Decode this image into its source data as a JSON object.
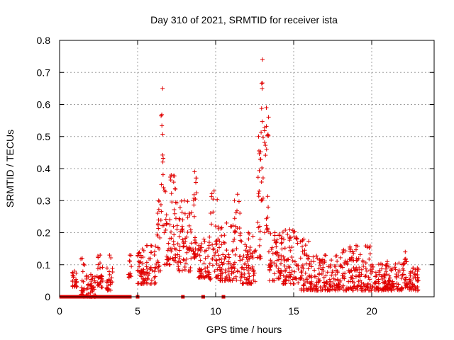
{
  "chart_data": {
    "type": "scatter",
    "title": "Day 310 of 2021, SRMTID for receiver ista",
    "xlabel": "GPS time / hours",
    "ylabel": "SRMTID / TECUs",
    "xlim": [
      0,
      24
    ],
    "ylim": [
      0,
      0.8
    ],
    "xticks": [
      0,
      5,
      10,
      15,
      20
    ],
    "yticks": [
      0,
      0.1,
      0.2,
      0.3,
      0.4,
      0.5,
      0.6,
      0.7,
      0.8
    ],
    "grid": true,
    "marker": "+",
    "color": "#e00000",
    "zero_marks": [
      0.1,
      0.3,
      0.5,
      0.7,
      0.9,
      1.1,
      1.3,
      1.5,
      1.7,
      1.9,
      2.1,
      2.3,
      2.5,
      2.7,
      2.9,
      3.1,
      3.3,
      3.5,
      3.7,
      3.9,
      4.1,
      4.3,
      4.5,
      5.0,
      7.9,
      9.2,
      10.5
    ],
    "clusters": [
      {
        "x": [
          0.8,
          1.1
        ],
        "y": [
          0.03,
          0.08
        ]
      },
      {
        "x": [
          1.3,
          1.6
        ],
        "y": [
          0.0,
          0.12
        ]
      },
      {
        "x": [
          1.7,
          2.3
        ],
        "y": [
          0.0,
          0.07
        ]
      },
      {
        "x": [
          2.4,
          2.8
        ],
        "y": [
          0.03,
          0.13
        ]
      },
      {
        "x": [
          3.0,
          3.4
        ],
        "y": [
          0.02,
          0.13
        ]
      },
      {
        "x": [
          4.4,
          4.6
        ],
        "y": [
          0.06,
          0.13
        ]
      },
      {
        "x": [
          5.0,
          6.2
        ],
        "y": [
          0.04,
          0.16
        ]
      },
      {
        "x": [
          6.2,
          6.5
        ],
        "y": [
          0.08,
          0.3
        ]
      },
      {
        "x": [
          6.5,
          6.7
        ],
        "y": [
          0.2,
          0.65
        ]
      },
      {
        "x": [
          6.7,
          7.6
        ],
        "y": [
          0.1,
          0.38
        ]
      },
      {
        "x": [
          7.6,
          8.4
        ],
        "y": [
          0.08,
          0.3
        ]
      },
      {
        "x": [
          8.4,
          8.9
        ],
        "y": [
          0.12,
          0.39
        ]
      },
      {
        "x": [
          8.9,
          9.6
        ],
        "y": [
          0.06,
          0.18
        ]
      },
      {
        "x": [
          9.6,
          10.2
        ],
        "y": [
          0.05,
          0.33
        ]
      },
      {
        "x": [
          10.2,
          11.2
        ],
        "y": [
          0.05,
          0.23
        ]
      },
      {
        "x": [
          11.2,
          11.6
        ],
        "y": [
          0.05,
          0.32
        ]
      },
      {
        "x": [
          11.6,
          12.6
        ],
        "y": [
          0.04,
          0.2
        ]
      },
      {
        "x": [
          12.6,
          12.9
        ],
        "y": [
          0.12,
          0.5
        ]
      },
      {
        "x": [
          12.9,
          13.1
        ],
        "y": [
          0.3,
          0.74
        ]
      },
      {
        "x": [
          13.1,
          13.4
        ],
        "y": [
          0.2,
          0.59
        ]
      },
      {
        "x": [
          13.4,
          14.2
        ],
        "y": [
          0.05,
          0.2
        ]
      },
      {
        "x": [
          14.2,
          15.3
        ],
        "y": [
          0.04,
          0.21
        ]
      },
      {
        "x": [
          15.3,
          16.0
        ],
        "y": [
          0.02,
          0.18
        ]
      },
      {
        "x": [
          16.0,
          18.0
        ],
        "y": [
          0.02,
          0.13
        ]
      },
      {
        "x": [
          18.0,
          20.0
        ],
        "y": [
          0.02,
          0.16
        ]
      },
      {
        "x": [
          20.0,
          22.0
        ],
        "y": [
          0.02,
          0.11
        ]
      },
      {
        "x": [
          22.0,
          22.3
        ],
        "y": [
          0.03,
          0.14
        ]
      },
      {
        "x": [
          22.3,
          23.0
        ],
        "y": [
          0.02,
          0.09
        ]
      }
    ]
  }
}
